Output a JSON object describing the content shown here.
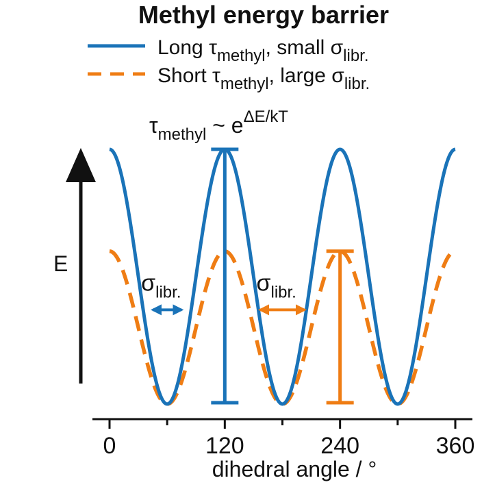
{
  "chart_data": {
    "type": "line",
    "title": "Methyl energy barrier",
    "xlabel": "dihedral angle / °",
    "ylabel": "E",
    "xlim": [
      0,
      360
    ],
    "xticks": [
      0,
      120,
      240,
      360
    ],
    "xtick_labels": [
      "0",
      "120",
      "240",
      "360"
    ],
    "minor_xticks": [
      60,
      180,
      300
    ],
    "grid": false,
    "legend_position": "top",
    "series": [
      {
        "legend_main": "Long τ",
        "legend_sub": "methyl",
        "legend_mid": ", small σ",
        "legend_sub2": "libr.",
        "color": "#1a73b8",
        "style": "solid",
        "relative_amplitude": 1.0,
        "minima_deg": [
          60,
          180,
          300
        ],
        "maxima_deg": [
          0,
          120,
          240,
          360
        ]
      },
      {
        "legend_main": "Short τ",
        "legend_sub": "methyl",
        "legend_mid": ", large σ",
        "legend_sub2": "libr.",
        "color": "#ef7d14",
        "style": "dashed",
        "relative_amplitude": 0.6,
        "minima_deg": [
          60,
          180,
          300
        ],
        "maxima_deg": [
          0,
          120,
          240,
          360
        ]
      }
    ],
    "annotations": {
      "formula_main": "τ",
      "formula_sub": "methyl",
      "formula_rest": " ~ e",
      "formula_sup": "ΔE/kT",
      "sigma_symbol": "σ",
      "sigma_sub": "libr.",
      "barrier_markers": [
        {
          "series": 0,
          "x_deg": 120
        },
        {
          "series": 1,
          "x_deg": 240
        }
      ],
      "width_arrows": [
        {
          "series": 0,
          "center_deg": 60
        },
        {
          "series": 1,
          "center_deg": 180
        }
      ]
    }
  }
}
